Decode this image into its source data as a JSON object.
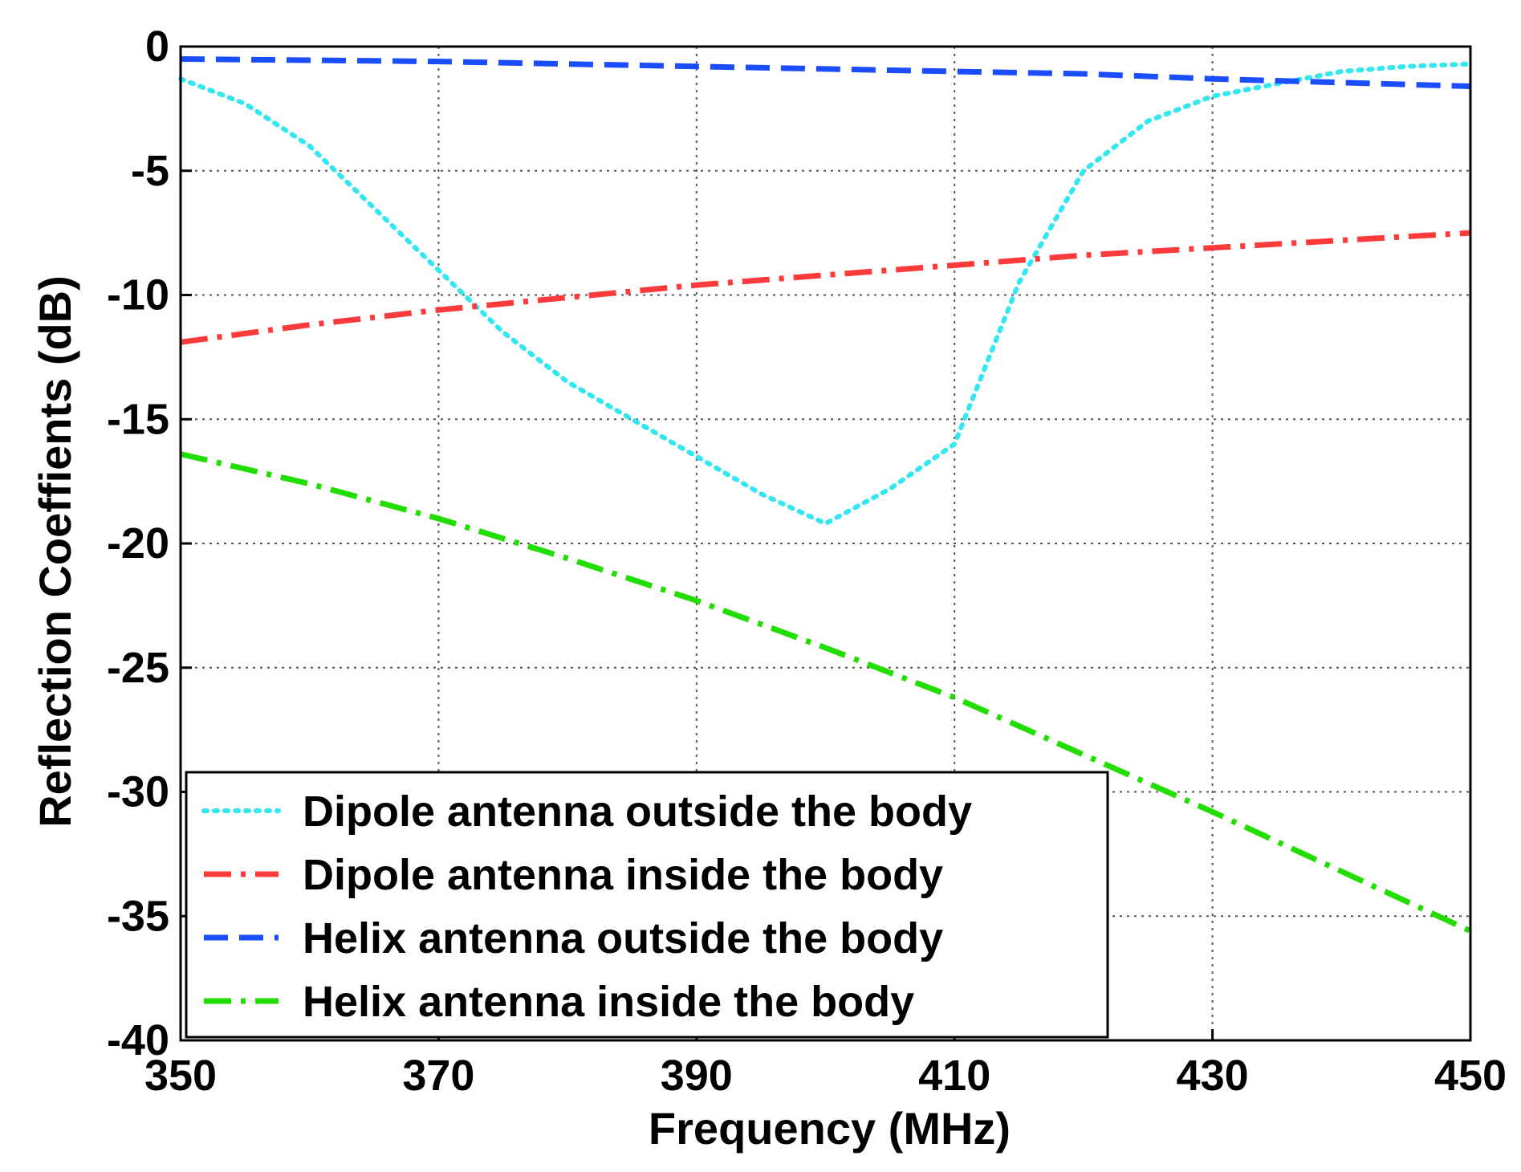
{
  "chart_data": {
    "type": "line",
    "title": "",
    "xlabel": "Frequency (MHz)",
    "ylabel": "Reflection Coeffients (dB)",
    "xlim": [
      350,
      450
    ],
    "ylim": [
      -40,
      0
    ],
    "xticks": [
      350,
      370,
      390,
      410,
      430,
      450
    ],
    "yticks": [
      0,
      -5,
      -10,
      -15,
      -20,
      -25,
      -30,
      -35,
      -40
    ],
    "grid": true,
    "legend_position": "bottom-left",
    "series": [
      {
        "name": "Dipole antenna outside the body",
        "color": "#33e6f0",
        "dash": "dotted",
        "x": [
          350,
          355,
          360,
          365,
          370,
          375,
          380,
          385,
          390,
          395,
          400,
          405,
          410,
          415,
          420,
          425,
          430,
          435,
          440,
          445,
          450
        ],
        "y": [
          -1.3,
          -2.3,
          -4.0,
          -6.5,
          -9.0,
          -11.5,
          -13.5,
          -15.0,
          -16.5,
          -18.0,
          -19.2,
          -17.8,
          -16.0,
          -9.5,
          -5.0,
          -3.0,
          -2.0,
          -1.5,
          -1.0,
          -0.8,
          -0.7
        ]
      },
      {
        "name": "Dipole antenna inside the body",
        "color": "#ff3a3a",
        "dash": "dash-dot",
        "x": [
          350,
          360,
          370,
          380,
          390,
          400,
          410,
          420,
          430,
          440,
          450
        ],
        "y": [
          -11.9,
          -11.2,
          -10.6,
          -10.1,
          -9.6,
          -9.2,
          -8.8,
          -8.4,
          -8.1,
          -7.8,
          -7.5
        ]
      },
      {
        "name": "Helix antenna outside the body",
        "color": "#1a4dff",
        "dash": "dashed",
        "x": [
          350,
          360,
          370,
          380,
          390,
          400,
          410,
          420,
          430,
          440,
          450
        ],
        "y": [
          -0.5,
          -0.55,
          -0.6,
          -0.7,
          -0.8,
          -0.9,
          -1.0,
          -1.1,
          -1.3,
          -1.45,
          -1.6
        ]
      },
      {
        "name": "Helix antenna inside the body",
        "color": "#22dd00",
        "dash": "dash-dot",
        "x": [
          350,
          360,
          370,
          380,
          390,
          400,
          410,
          420,
          430,
          440,
          450
        ],
        "y": [
          -16.4,
          -17.6,
          -19.0,
          -20.6,
          -22.3,
          -24.2,
          -26.2,
          -28.5,
          -30.8,
          -33.2,
          -35.6
        ]
      }
    ]
  }
}
